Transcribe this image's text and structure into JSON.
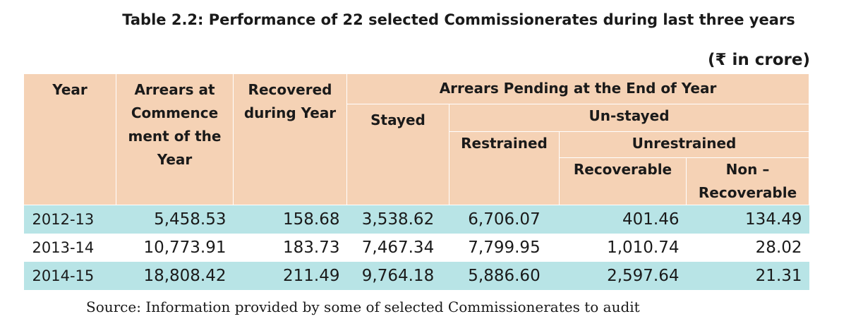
{
  "title": "Table 2.2: Performance of 22 selected Commissionerates during last three years",
  "unit": "(₹ in crore)",
  "headers": {
    "year": "Year",
    "arrears_commencement": "Arrears at Commence ment of the Year",
    "recovered": "Recovered during Year",
    "pending": "Arrears Pending at the End of Year",
    "stayed": "Stayed",
    "unstayed": "Un-stayed",
    "restrained": "Restrained",
    "unrestrained": "Unrestrained",
    "recoverable": "Recoverable",
    "non_recoverable": "Non – Recoverable"
  },
  "rows": [
    {
      "year": "2012-13",
      "arrears": "5,458.53",
      "recovered": "158.68",
      "stayed": "3,538.62",
      "restrained": "6,706.07",
      "recoverable": "401.46",
      "non_recoverable": "134.49"
    },
    {
      "year": "2013-14",
      "arrears": "10,773.91",
      "recovered": "183.73",
      "stayed": "7,467.34",
      "restrained": "7,799.95",
      "recoverable": "1,010.74",
      "non_recoverable": "28.02"
    },
    {
      "year": "2014-15",
      "arrears": "18,808.42",
      "recovered": "211.49",
      "stayed": "9,764.18",
      "restrained": "5,886.60",
      "recoverable": "2,597.64",
      "non_recoverable": "21.31"
    }
  ],
  "source": "Source: Information provided by some of selected Commissionerates to audit",
  "colors": {
    "header_bg": "#f5d2b5",
    "row_shade": "#b8e4e6"
  }
}
